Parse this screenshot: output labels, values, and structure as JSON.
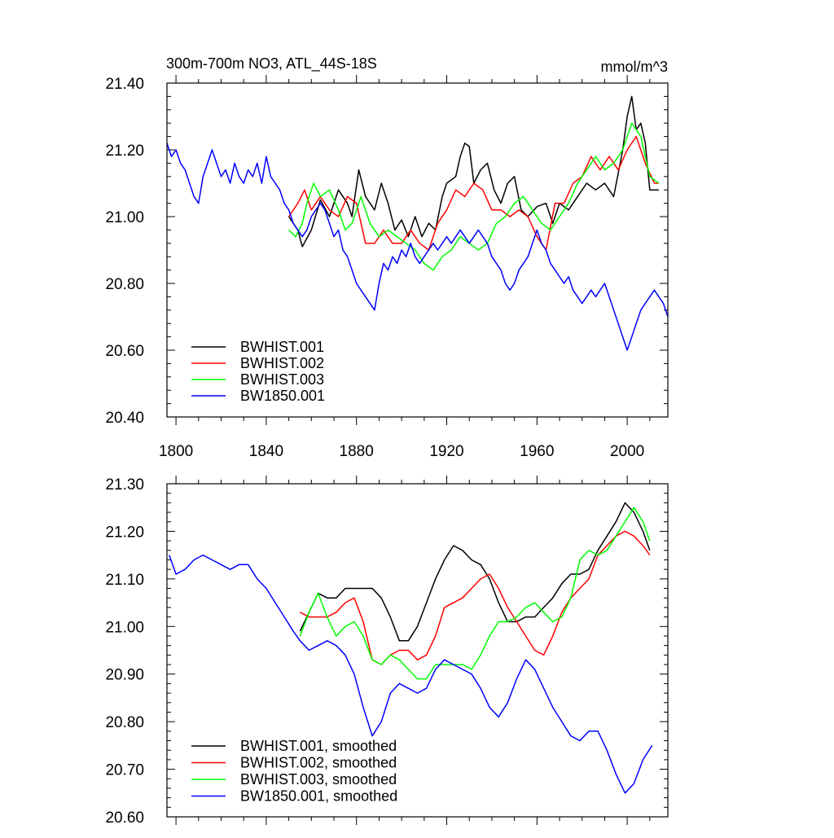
{
  "figure": {
    "title_left": "300m-700m NO3, ATL_44S-18S",
    "title_right": "mmol/m^3"
  },
  "chart_data": [
    {
      "type": "line",
      "title": "300m-700m NO3, ATL_44S-18S",
      "units": "mmol/m^3",
      "xlim": [
        1796,
        2018
      ],
      "ylim": [
        20.4,
        21.4
      ],
      "yticks": [
        {
          "value": 20.4,
          "label": "20.40"
        },
        {
          "value": 20.6,
          "label": "20.60"
        },
        {
          "value": 20.8,
          "label": "20.80"
        },
        {
          "value": 21.0,
          "label": "21.00"
        },
        {
          "value": 21.2,
          "label": "21.20"
        },
        {
          "value": 21.4,
          "label": "21.40"
        }
      ],
      "xticks": [
        {
          "value": 1800,
          "label": "1800"
        },
        {
          "value": 1840,
          "label": "1840"
        },
        {
          "value": 1880,
          "label": "1880"
        },
        {
          "value": 1920,
          "label": "1920"
        },
        {
          "value": 1960,
          "label": "1960"
        },
        {
          "value": 2000,
          "label": "2000"
        }
      ],
      "legend_position": "bottom-left",
      "series": [
        {
          "name": "BWHIST.001",
          "color": "#000000",
          "x": [
            1850,
            1854,
            1856,
            1860,
            1864,
            1868,
            1872,
            1876,
            1878,
            1881,
            1884,
            1888,
            1891,
            1894,
            1897,
            1900,
            1903,
            1906,
            1909,
            1912,
            1915,
            1918,
            1920,
            1924,
            1926,
            1928,
            1930,
            1932,
            1935,
            1938,
            1941,
            1944,
            1947,
            1950,
            1953,
            1956,
            1960,
            1964,
            1967,
            1970,
            1974,
            1978,
            1982,
            1986,
            1990,
            1994,
            1998,
            2000,
            2002,
            2004,
            2006,
            2008,
            2010,
            2012,
            2014
          ],
          "y": [
            21.0,
            20.96,
            20.91,
            20.96,
            21.05,
            21.0,
            21.08,
            21.04,
            21.0,
            21.14,
            21.06,
            21.02,
            21.1,
            21.04,
            20.96,
            20.99,
            20.94,
            21.0,
            20.94,
            20.98,
            20.96,
            21.06,
            21.1,
            21.12,
            21.18,
            21.22,
            21.21,
            21.1,
            21.14,
            21.16,
            21.08,
            21.04,
            21.1,
            21.12,
            21.02,
            21.0,
            21.03,
            21.04,
            20.98,
            21.04,
            21.02,
            21.06,
            21.1,
            21.08,
            21.1,
            21.06,
            21.2,
            21.3,
            21.36,
            21.26,
            21.28,
            21.22,
            21.08,
            21.08,
            21.08
          ]
        },
        {
          "name": "BWHIST.002",
          "color": "#ff0000",
          "x": [
            1850,
            1854,
            1857,
            1860,
            1864,
            1868,
            1872,
            1876,
            1880,
            1884,
            1888,
            1892,
            1896,
            1900,
            1904,
            1908,
            1912,
            1916,
            1920,
            1924,
            1928,
            1932,
            1936,
            1940,
            1944,
            1948,
            1952,
            1956,
            1960,
            1964,
            1968,
            1972,
            1976,
            1980,
            1984,
            1988,
            1992,
            1996,
            2000,
            2004,
            2008,
            2012,
            2014
          ],
          "y": [
            21.0,
            21.04,
            21.08,
            21.02,
            21.06,
            21.02,
            21.0,
            21.06,
            21.04,
            20.92,
            20.92,
            20.96,
            20.92,
            20.92,
            20.96,
            20.92,
            20.9,
            20.98,
            21.02,
            21.08,
            21.06,
            21.1,
            21.08,
            21.02,
            21.02,
            21.0,
            21.02,
            21.0,
            20.94,
            20.9,
            21.04,
            21.04,
            21.1,
            21.12,
            21.18,
            21.14,
            21.18,
            21.14,
            21.2,
            21.24,
            21.16,
            21.1,
            21.1
          ]
        },
        {
          "name": "BWHIST.003",
          "color": "#00ff00",
          "x": [
            1850,
            1853,
            1856,
            1858,
            1861,
            1864,
            1868,
            1872,
            1875,
            1878,
            1882,
            1886,
            1890,
            1894,
            1898,
            1902,
            1906,
            1910,
            1914,
            1918,
            1922,
            1926,
            1930,
            1934,
            1938,
            1942,
            1946,
            1950,
            1954,
            1958,
            1962,
            1966,
            1970,
            1974,
            1978,
            1982,
            1986,
            1990,
            1994,
            1998,
            2002,
            2006,
            2010,
            2014
          ],
          "y": [
            20.96,
            20.94,
            20.98,
            21.04,
            21.1,
            21.06,
            21.08,
            21.02,
            20.96,
            20.98,
            21.06,
            20.98,
            20.94,
            20.96,
            20.94,
            20.92,
            20.9,
            20.86,
            20.84,
            20.88,
            20.9,
            20.94,
            20.92,
            20.9,
            20.92,
            20.98,
            21.0,
            21.04,
            21.06,
            21.02,
            20.98,
            20.96,
            21.0,
            21.04,
            21.1,
            21.14,
            21.18,
            21.14,
            21.16,
            21.2,
            21.28,
            21.24,
            21.12,
            21.1
          ]
        },
        {
          "name": "BW1850.001",
          "color": "#0000ff",
          "x": [
            1796,
            1798,
            1800,
            1802,
            1804,
            1806,
            1808,
            1810,
            1812,
            1814,
            1816,
            1818,
            1820,
            1822,
            1824,
            1826,
            1828,
            1830,
            1832,
            1834,
            1836,
            1838,
            1840,
            1842,
            1844,
            1846,
            1848,
            1850,
            1852,
            1854,
            1856,
            1858,
            1860,
            1862,
            1864,
            1866,
            1868,
            1870,
            1872,
            1874,
            1876,
            1878,
            1880,
            1882,
            1884,
            1886,
            1888,
            1890,
            1892,
            1894,
            1896,
            1898,
            1900,
            1902,
            1904,
            1906,
            1908,
            1910,
            1912,
            1914,
            1916,
            1918,
            1920,
            1922,
            1924,
            1926,
            1928,
            1930,
            1932,
            1934,
            1936,
            1938,
            1940,
            1942,
            1944,
            1946,
            1948,
            1950,
            1952,
            1954,
            1956,
            1958,
            1960,
            1962,
            1964,
            1966,
            1968,
            1970,
            1972,
            1974,
            1976,
            1978,
            1980,
            1982,
            1984,
            1986,
            1988,
            1990,
            1992,
            1994,
            1996,
            1998,
            2000,
            2002,
            2004,
            2006,
            2008,
            2010,
            2012,
            2014,
            2016,
            2018
          ],
          "y": [
            21.22,
            21.18,
            21.2,
            21.16,
            21.14,
            21.1,
            21.06,
            21.04,
            21.12,
            21.16,
            21.2,
            21.16,
            21.12,
            21.14,
            21.1,
            21.16,
            21.12,
            21.1,
            21.14,
            21.12,
            21.16,
            21.1,
            21.18,
            21.12,
            21.1,
            21.08,
            21.04,
            21.02,
            20.98,
            20.96,
            20.94,
            20.96,
            21.0,
            21.02,
            21.04,
            21.02,
            20.98,
            20.94,
            20.96,
            20.9,
            20.88,
            20.84,
            20.8,
            20.78,
            20.76,
            20.74,
            20.72,
            20.8,
            20.86,
            20.84,
            20.88,
            20.86,
            20.9,
            20.88,
            20.92,
            20.88,
            20.86,
            20.88,
            20.9,
            20.92,
            20.9,
            20.92,
            20.94,
            20.92,
            20.94,
            20.96,
            20.94,
            20.92,
            20.94,
            20.96,
            20.94,
            20.92,
            20.88,
            20.86,
            20.84,
            20.8,
            20.78,
            20.8,
            20.84,
            20.86,
            20.88,
            20.92,
            20.96,
            20.92,
            20.9,
            20.86,
            20.84,
            20.82,
            20.8,
            20.82,
            20.78,
            20.76,
            20.74,
            20.76,
            20.78,
            20.76,
            20.78,
            20.8,
            20.76,
            20.72,
            20.68,
            20.64,
            20.6,
            20.64,
            20.68,
            20.72,
            20.74,
            20.76,
            20.78,
            20.76,
            20.74,
            20.7
          ]
        }
      ]
    },
    {
      "type": "line",
      "xlim": [
        1796,
        2018
      ],
      "ylim": [
        20.6,
        21.3
      ],
      "yticks": [
        {
          "value": 20.6,
          "label": "20.60"
        },
        {
          "value": 20.7,
          "label": "20.70"
        },
        {
          "value": 20.8,
          "label": "20.80"
        },
        {
          "value": 20.9,
          "label": "20.90"
        },
        {
          "value": 21.0,
          "label": "21.00"
        },
        {
          "value": 21.1,
          "label": "21.10"
        },
        {
          "value": 21.2,
          "label": "21.20"
        },
        {
          "value": 21.3,
          "label": "21.30"
        }
      ],
      "xticks": [
        1800,
        1840,
        1880,
        1920,
        1960,
        2000
      ],
      "legend_position": "bottom-left",
      "series": [
        {
          "name": "BWHIST.001, smoothed",
          "color": "#000000",
          "x": [
            1855,
            1859,
            1863,
            1867,
            1871,
            1875,
            1879,
            1883,
            1887,
            1891,
            1895,
            1899,
            1903,
            1907,
            1911,
            1915,
            1919,
            1923,
            1927,
            1931,
            1935,
            1939,
            1943,
            1947,
            1951,
            1955,
            1959,
            1963,
            1967,
            1971,
            1975,
            1979,
            1983,
            1987,
            1991,
            1995,
            1999,
            2003,
            2007,
            2010
          ],
          "y": [
            20.99,
            21.03,
            21.07,
            21.06,
            21.06,
            21.08,
            21.08,
            21.08,
            21.08,
            21.06,
            21.02,
            20.97,
            20.97,
            21.0,
            21.05,
            21.1,
            21.14,
            21.17,
            21.16,
            21.14,
            21.13,
            21.1,
            21.05,
            21.01,
            21.01,
            21.02,
            21.02,
            21.04,
            21.06,
            21.09,
            21.11,
            21.11,
            21.12,
            21.16,
            21.19,
            21.22,
            21.26,
            21.24,
            21.2,
            21.16
          ]
        },
        {
          "name": "BWHIST.002, smoothed",
          "color": "#ff0000",
          "x": [
            1855,
            1859,
            1863,
            1867,
            1871,
            1875,
            1879,
            1883,
            1887,
            1891,
            1895,
            1899,
            1903,
            1907,
            1911,
            1915,
            1919,
            1923,
            1927,
            1931,
            1935,
            1939,
            1943,
            1947,
            1951,
            1955,
            1959,
            1963,
            1967,
            1971,
            1975,
            1979,
            1983,
            1987,
            1991,
            1995,
            1999,
            2003,
            2007,
            2010
          ],
          "y": [
            21.03,
            21.02,
            21.02,
            21.02,
            21.03,
            21.05,
            21.06,
            21.01,
            20.93,
            20.92,
            20.94,
            20.95,
            20.95,
            20.93,
            20.94,
            20.98,
            21.04,
            21.05,
            21.06,
            21.08,
            21.1,
            21.11,
            21.08,
            21.04,
            21.01,
            20.98,
            20.95,
            20.94,
            20.98,
            21.03,
            21.06,
            21.08,
            21.1,
            21.15,
            21.17,
            21.19,
            21.2,
            21.19,
            21.17,
            21.15
          ]
        },
        {
          "name": "BWHIST.003, smoothed",
          "color": "#00ff00",
          "x": [
            1855,
            1859,
            1863,
            1867,
            1871,
            1875,
            1879,
            1883,
            1887,
            1891,
            1895,
            1899,
            1903,
            1907,
            1911,
            1915,
            1919,
            1923,
            1927,
            1931,
            1935,
            1939,
            1943,
            1947,
            1951,
            1955,
            1959,
            1963,
            1967,
            1971,
            1975,
            1979,
            1983,
            1987,
            1991,
            1995,
            1999,
            2003,
            2007,
            2010
          ],
          "y": [
            20.98,
            21.03,
            21.07,
            21.02,
            20.98,
            21.0,
            21.01,
            20.98,
            20.93,
            20.92,
            20.94,
            20.93,
            20.91,
            20.89,
            20.89,
            20.92,
            20.92,
            20.92,
            20.92,
            20.91,
            20.94,
            20.98,
            21.01,
            21.01,
            21.02,
            21.04,
            21.05,
            21.03,
            21.01,
            21.02,
            21.06,
            21.14,
            21.16,
            21.15,
            21.16,
            21.19,
            21.22,
            21.25,
            21.22,
            21.18
          ]
        },
        {
          "name": "BW1850.001, smoothed",
          "color": "#0000ff",
          "x": [
            1797,
            1800,
            1804,
            1808,
            1812,
            1816,
            1820,
            1824,
            1828,
            1832,
            1836,
            1840,
            1844,
            1848,
            1852,
            1855,
            1859,
            1863,
            1867,
            1871,
            1875,
            1879,
            1883,
            1887,
            1891,
            1895,
            1899,
            1903,
            1907,
            1911,
            1915,
            1919,
            1923,
            1927,
            1931,
            1935,
            1939,
            1943,
            1947,
            1951,
            1955,
            1959,
            1963,
            1967,
            1971,
            1975,
            1979,
            1983,
            1987,
            1991,
            1995,
            1999,
            2003,
            2007,
            2011
          ],
          "y": [
            21.15,
            21.11,
            21.12,
            21.14,
            21.15,
            21.14,
            21.13,
            21.12,
            21.13,
            21.13,
            21.1,
            21.08,
            21.05,
            21.02,
            20.99,
            20.97,
            20.95,
            20.96,
            20.97,
            20.96,
            20.94,
            20.9,
            20.83,
            20.77,
            20.8,
            20.86,
            20.88,
            20.87,
            20.86,
            20.87,
            20.91,
            20.93,
            20.92,
            20.91,
            20.9,
            20.87,
            20.83,
            20.81,
            20.84,
            20.89,
            20.93,
            20.91,
            20.87,
            20.83,
            20.8,
            20.77,
            20.76,
            20.78,
            20.78,
            20.74,
            20.69,
            20.65,
            20.67,
            20.72,
            20.75
          ]
        }
      ]
    }
  ]
}
